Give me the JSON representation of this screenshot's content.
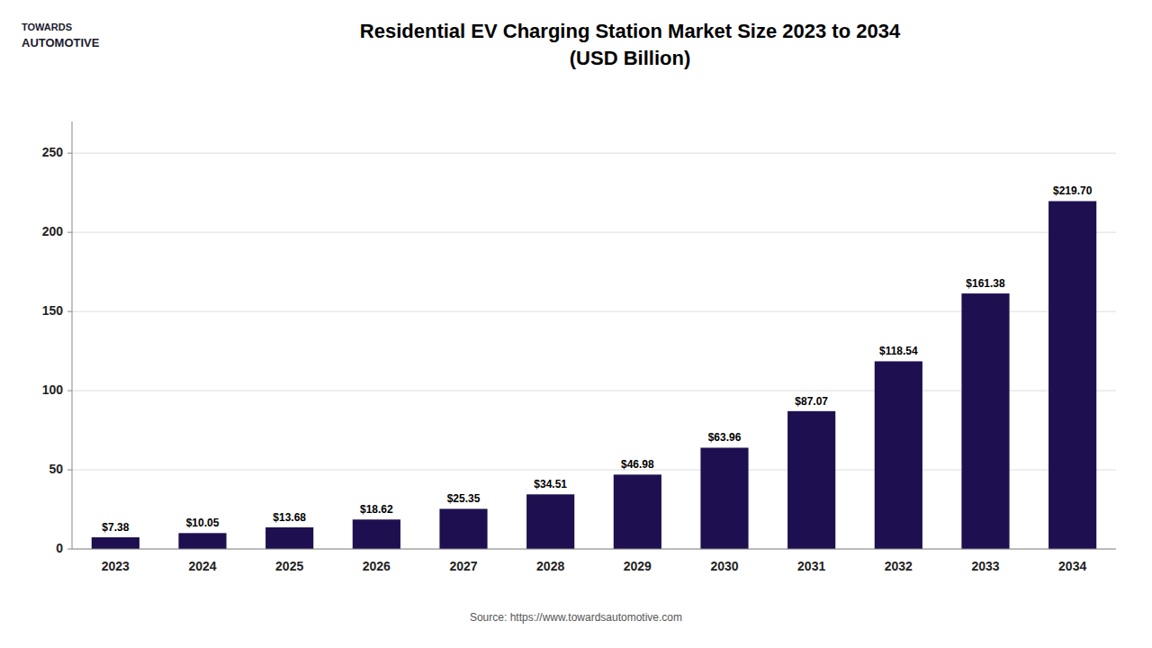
{
  "chart_data": {
    "type": "bar",
    "title": "Residential EV Charging Station Market Size 2023 to 2034",
    "subtitle": "(USD Billion)",
    "categories": [
      "2023",
      "2024",
      "2025",
      "2026",
      "2027",
      "2028",
      "2029",
      "2030",
      "2031",
      "2032",
      "2033",
      "2034"
    ],
    "values": [
      7.38,
      10.05,
      13.68,
      18.62,
      25.35,
      34.51,
      46.98,
      63.96,
      87.07,
      118.54,
      161.38,
      219.7
    ],
    "value_labels": [
      "$7.38",
      "$10.05",
      "$13.68",
      "$18.62",
      "$25.35",
      "$34.51",
      "$46.98",
      "$63.96",
      "$87.07",
      "$118.54",
      "$161.38",
      "$219.70"
    ],
    "color": "#1e1050",
    "ylim": [
      0,
      270
    ],
    "yticks": [
      0,
      50,
      100,
      150,
      200,
      250
    ],
    "grid": true,
    "data_labels": true,
    "annotations": [
      "Source: https://www.towardsautomotive.com",
      "TOWARDS",
      "AUTOMOTIVE"
    ]
  }
}
